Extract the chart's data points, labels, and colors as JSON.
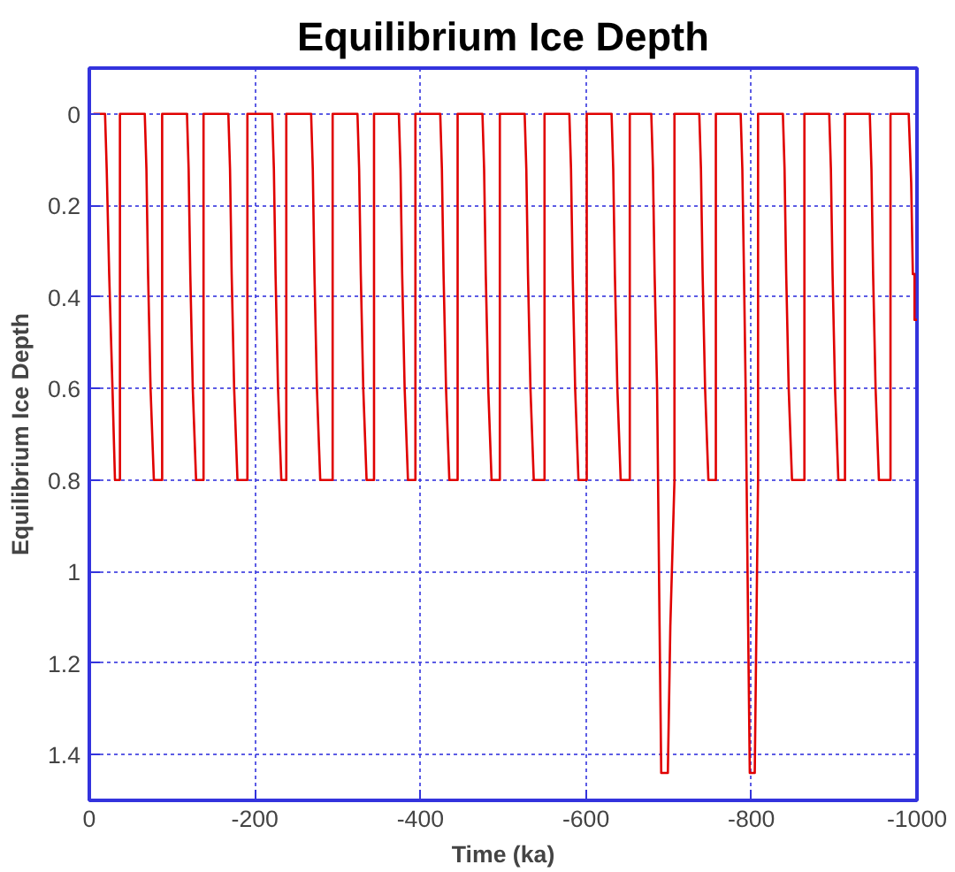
{
  "chart_data": {
    "type": "line",
    "title": "Equilibrium Ice Depth",
    "xlabel": "Time (ka)",
    "ylabel": "Equilibrium Ice Depth",
    "xlim": [
      0,
      -1000
    ],
    "ylim": [
      1.5,
      -0.1
    ],
    "xticks": [
      0,
      -200,
      -400,
      -600,
      -800,
      -1000
    ],
    "yticks": [
      0,
      0.2,
      0.4,
      0.6,
      0.8,
      1,
      1.2,
      1.4
    ],
    "grid": true,
    "marker": "none",
    "line_style": "solid",
    "series": [
      {
        "color": "#e00000",
        "x": [
          -5,
          -19,
          -21,
          -24,
          -28,
          -31,
          -37,
          -37,
          -67,
          -69,
          -71,
          -74,
          -78,
          -88,
          -88,
          -118,
          -120,
          -122,
          -125,
          -129,
          -138,
          -138,
          -168,
          -170,
          -172,
          -175,
          -179,
          -191,
          -191,
          -221,
          -223,
          -225,
          -228,
          -232,
          -238,
          -238,
          -268,
          -270,
          -272,
          -275,
          -279,
          -294,
          -294,
          -324,
          -326,
          -328,
          -331,
          -335,
          -344,
          -344,
          -374,
          -376,
          -378,
          -381,
          -385,
          -394,
          -394,
          -424,
          -426,
          -428,
          -431,
          -435,
          -445,
          -445,
          -475,
          -477,
          -479,
          -482,
          -486,
          -496,
          -496,
          -526,
          -528,
          -530,
          -533,
          -537,
          -550,
          -550,
          -580,
          -582,
          -584,
          -587,
          -591,
          -601,
          -601,
          -631,
          -633,
          -635,
          -638,
          -642,
          -653,
          -653,
          -679,
          -681,
          -683,
          -686,
          -689,
          -691,
          -699,
          -702,
          -707,
          -707,
          -737,
          -739,
          -741,
          -744,
          -748,
          -757,
          -757,
          -787,
          -789,
          -791,
          -793,
          -796,
          -798,
          -804,
          -806,
          -808,
          -808,
          -838,
          -840,
          -842,
          -845,
          -849,
          -864,
          -864,
          -894,
          -896,
          -898,
          -901,
          -905,
          -913,
          -913,
          -943,
          -945,
          -947,
          -950,
          -954,
          -968,
          -968,
          -990,
          -993,
          -995,
          -997,
          -997,
          -1000
        ],
        "values": [
          0,
          0,
          0.12,
          0.35,
          0.6,
          0.8,
          0.8,
          0,
          0,
          0.12,
          0.35,
          0.6,
          0.8,
          0.8,
          0,
          0,
          0.12,
          0.35,
          0.6,
          0.8,
          0.8,
          0,
          0,
          0.12,
          0.35,
          0.6,
          0.8,
          0.8,
          0,
          0,
          0.12,
          0.35,
          0.6,
          0.8,
          0.8,
          0,
          0,
          0.12,
          0.35,
          0.6,
          0.8,
          0.8,
          0,
          0,
          0.12,
          0.35,
          0.6,
          0.8,
          0.8,
          0,
          0,
          0.12,
          0.35,
          0.6,
          0.8,
          0.8,
          0,
          0,
          0.12,
          0.35,
          0.6,
          0.8,
          0.8,
          0,
          0,
          0.12,
          0.35,
          0.6,
          0.8,
          0.8,
          0,
          0,
          0.12,
          0.35,
          0.6,
          0.8,
          0.8,
          0,
          0,
          0.12,
          0.35,
          0.6,
          0.8,
          0.8,
          0,
          0,
          0.12,
          0.35,
          0.6,
          0.8,
          0.8,
          0,
          0,
          0.12,
          0.35,
          0.6,
          1.12,
          1.44,
          1.44,
          1.12,
          0.8,
          0,
          0,
          0.12,
          0.35,
          0.6,
          0.8,
          0.8,
          0,
          0,
          0.12,
          0.35,
          0.6,
          1.12,
          1.44,
          1.44,
          1.12,
          0.8,
          0,
          0,
          0.12,
          0.35,
          0.6,
          0.8,
          0.8,
          0,
          0,
          0.12,
          0.35,
          0.6,
          0.8,
          0.8,
          0,
          0,
          0.12,
          0.35,
          0.6,
          0.8,
          0.8,
          0,
          0,
          0.15,
          0.35,
          0.35,
          0.45,
          0.45
        ]
      }
    ]
  }
}
